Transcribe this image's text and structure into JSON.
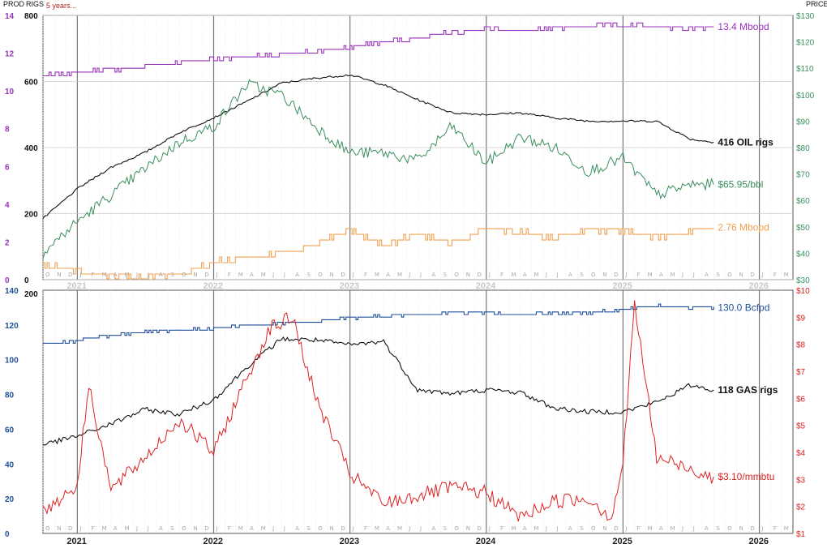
{
  "header": {
    "prod_label": "PROD",
    "rigs_label": "RIGS",
    "period_label": "5 years...",
    "price_label": "PRICE"
  },
  "colors": {
    "oil_prod": "#9933bb",
    "oil_rigs": "#111111",
    "oil_price": "#3a8f5c",
    "gas_prod_small": "#f0a050",
    "gas_prod": "#1f4e99",
    "gas_rigs": "#111111",
    "gas_price": "#dd2222"
  },
  "chart_data": [
    {
      "type": "line",
      "panel": "oil",
      "x_range": [
        "2020-10-01",
        "2026-04-01"
      ],
      "month_letters": [
        "O",
        "N",
        "D",
        "J",
        "F",
        "M",
        "A",
        "M",
        "J",
        "J",
        "A",
        "S",
        "O",
        "N",
        "D",
        "J",
        "F",
        "M",
        "A",
        "M",
        "J",
        "J",
        "A",
        "S",
        "O",
        "N",
        "D",
        "J",
        "F",
        "M",
        "A",
        "M",
        "J",
        "J",
        "A",
        "S",
        "O",
        "N",
        "D",
        "J",
        "F",
        "M",
        "A",
        "M",
        "J",
        "J",
        "A",
        "S",
        "O",
        "N",
        "D",
        "J",
        "F",
        "M",
        "A",
        "M",
        "J",
        "J",
        "A",
        "S",
        "O",
        "N",
        "D",
        "J",
        "F",
        "M"
      ],
      "year_labels": [
        "2021",
        "2022",
        "2023",
        "2024",
        "2025",
        "2026"
      ],
      "axes": {
        "prod": {
          "ticks": [
            "0",
            "2",
            "4",
            "6",
            "8",
            "10",
            "12",
            "14"
          ],
          "range": [
            0,
            14
          ]
        },
        "rigs": {
          "ticks": [
            "0",
            "200",
            "400",
            "600",
            "800"
          ],
          "range": [
            0,
            800
          ]
        },
        "price": {
          "ticks": [
            "$30",
            "$40",
            "$50",
            "$60",
            "$70",
            "$80",
            "$90",
            "$100",
            "$110",
            "$120",
            "$130"
          ],
          "range": [
            30,
            130
          ]
        }
      },
      "series": [
        {
          "name": "Mbopd",
          "axis": "prod",
          "end_label": "13.4 Mbopd",
          "x": [
            "2020-10",
            "2021-01",
            "2021-04",
            "2021-07",
            "2021-10",
            "2022-01",
            "2022-04",
            "2022-07",
            "2022-10",
            "2023-01",
            "2023-04",
            "2023-07",
            "2023-10",
            "2024-01",
            "2024-04",
            "2024-07",
            "2024-10",
            "2025-01",
            "2025-04",
            "2025-07",
            "2025-09"
          ],
          "values": [
            10.8,
            11.0,
            11.1,
            11.3,
            11.5,
            11.7,
            11.8,
            11.9,
            12.1,
            12.3,
            12.6,
            12.8,
            13.1,
            13.3,
            13.2,
            13.3,
            13.5,
            13.5,
            13.4,
            13.3,
            13.4
          ]
        },
        {
          "name": "OIL rigs",
          "axis": "rigs",
          "end_label": "416 OIL rigs",
          "x": [
            "2020-10",
            "2021-01",
            "2021-04",
            "2021-07",
            "2021-10",
            "2022-01",
            "2022-04",
            "2022-07",
            "2022-10",
            "2023-01",
            "2023-04",
            "2023-07",
            "2023-10",
            "2024-01",
            "2024-04",
            "2024-07",
            "2024-10",
            "2025-01",
            "2025-04",
            "2025-07",
            "2025-09"
          ],
          "values": [
            185,
            275,
            340,
            385,
            445,
            490,
            540,
            595,
            610,
            620,
            590,
            545,
            505,
            500,
            505,
            490,
            480,
            480,
            480,
            425,
            416
          ]
        },
        {
          "name": "$/bbl",
          "axis": "price",
          "end_label": "$65.95/bbl",
          "x": [
            "2020-10",
            "2021-01",
            "2021-04",
            "2021-07",
            "2021-10",
            "2022-01",
            "2022-04",
            "2022-07",
            "2022-10",
            "2023-01",
            "2023-04",
            "2023-07",
            "2023-10",
            "2024-01",
            "2024-04",
            "2024-07",
            "2024-10",
            "2025-01",
            "2025-04",
            "2025-07",
            "2025-09"
          ],
          "values": [
            40,
            52,
            62,
            72,
            82,
            88,
            104,
            100,
            88,
            78,
            78,
            75,
            88,
            74,
            84,
            80,
            71,
            76,
            62,
            66,
            66
          ]
        },
        {
          "name": "Mbopd (orange)",
          "axis": "prod",
          "end_label": "2.76 Mbopd",
          "x": [
            "2020-10",
            "2021-01",
            "2021-04",
            "2021-07",
            "2021-10",
            "2022-01",
            "2022-04",
            "2022-07",
            "2022-10",
            "2023-01",
            "2023-04",
            "2023-07",
            "2023-10",
            "2024-01",
            "2024-04",
            "2024-07",
            "2024-10",
            "2025-01",
            "2025-04",
            "2025-07",
            "2025-09"
          ],
          "values": [
            0.8,
            0.5,
            0.2,
            0.1,
            0.3,
            0.9,
            1.2,
            1.4,
            1.9,
            2.6,
            1.8,
            2.4,
            1.9,
            2.7,
            2.5,
            2.2,
            2.6,
            2.6,
            2.3,
            2.5,
            2.76
          ]
        }
      ]
    },
    {
      "type": "line",
      "panel": "gas",
      "x_range": [
        "2020-10-01",
        "2026-04-01"
      ],
      "axes": {
        "prod": {
          "ticks": [
            "0",
            "20",
            "40",
            "60",
            "80",
            "100",
            "120",
            "140"
          ],
          "range": [
            0,
            140
          ]
        },
        "rigs": {
          "ticks": [
            "200"
          ],
          "range": [
            0,
            200
          ]
        },
        "price": {
          "ticks": [
            "$1",
            "$2",
            "$3",
            "$4",
            "$5",
            "$6",
            "$7",
            "$8",
            "$9",
            "$10"
          ],
          "range": [
            1,
            10
          ]
        }
      },
      "series": [
        {
          "name": "Bcfpd",
          "axis": "prod",
          "end_label": "130.0 Bcfpd",
          "x": [
            "2020-10",
            "2021-01",
            "2021-04",
            "2021-07",
            "2021-10",
            "2022-01",
            "2022-04",
            "2022-07",
            "2022-10",
            "2023-01",
            "2023-04",
            "2023-07",
            "2023-10",
            "2024-01",
            "2024-04",
            "2024-07",
            "2024-10",
            "2025-01",
            "2025-04",
            "2025-07",
            "2025-09"
          ],
          "values": [
            109,
            111,
            114,
            116,
            117,
            118,
            120,
            121,
            122,
            124,
            125,
            126,
            127,
            127,
            126,
            127,
            127,
            129,
            131,
            130,
            130
          ]
        },
        {
          "name": "GAS rigs",
          "axis": "rigs",
          "end_label": "118 GAS rigs",
          "x": [
            "2020-10",
            "2021-01",
            "2021-04",
            "2021-07",
            "2021-10",
            "2022-01",
            "2022-04",
            "2022-07",
            "2022-10",
            "2023-01",
            "2023-04",
            "2023-07",
            "2023-10",
            "2024-01",
            "2024-04",
            "2024-07",
            "2024-10",
            "2025-01",
            "2025-04",
            "2025-07",
            "2025-09"
          ],
          "values": [
            73,
            80,
            90,
            102,
            98,
            110,
            137,
            160,
            159,
            155,
            158,
            118,
            115,
            118,
            116,
            103,
            100,
            100,
            108,
            122,
            118
          ]
        },
        {
          "name": "$/mmbtu",
          "axis": "price",
          "end_label": "$3.10/mmbtu",
          "x": [
            "2020-10",
            "2021-01",
            "2021-02",
            "2021-04",
            "2021-07",
            "2021-10",
            "2022-01",
            "2022-04",
            "2022-06",
            "2022-08",
            "2022-10",
            "2023-01",
            "2023-04",
            "2023-07",
            "2023-10",
            "2024-01",
            "2024-04",
            "2024-07",
            "2024-10",
            "2024-12",
            "2025-01",
            "2025-02",
            "2025-04",
            "2025-07",
            "2025-09"
          ],
          "values": [
            1.8,
            2.8,
            6.5,
            2.6,
            3.8,
            5.2,
            4.0,
            6.8,
            8.6,
            9.0,
            6.0,
            3.2,
            2.1,
            2.4,
            2.7,
            2.5,
            1.6,
            2.2,
            2.3,
            1.6,
            3.6,
            9.5,
            3.8,
            3.4,
            3.1
          ]
        }
      ]
    }
  ]
}
